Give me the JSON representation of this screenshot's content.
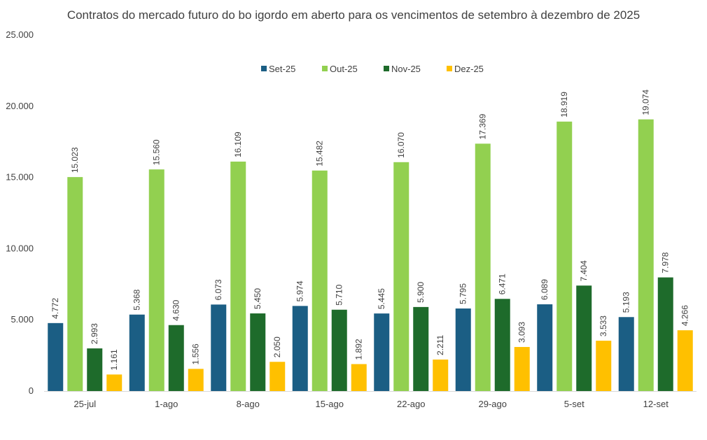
{
  "chart_data": {
    "type": "bar",
    "title": "Contratos do mercado futuro do bo igordo em aberto para os vencimentos de setembro à dezembro de 2025",
    "xlabel": "",
    "ylabel": "",
    "ylim": [
      0,
      25000
    ],
    "y_ticks": [
      "0",
      "5.000",
      "10.000",
      "15.000",
      "20.000",
      "25.000"
    ],
    "y_tick_values": [
      0,
      5000,
      10000,
      15000,
      20000,
      25000
    ],
    "grid": false,
    "legend_position": "top",
    "categories": [
      "25-jul",
      "1-ago",
      "8-ago",
      "15-ago",
      "22-ago",
      "29-ago",
      "5-set",
      "12-set"
    ],
    "series": [
      {
        "name": "Set-25",
        "color": "#1b5e84",
        "values": [
          4772,
          5368,
          6073,
          5974,
          5445,
          5795,
          6089,
          5193
        ],
        "labels": [
          "4.772",
          "5.368",
          "6.073",
          "5.974",
          "5.445",
          "5.795",
          "6.089",
          "5.193"
        ]
      },
      {
        "name": "Out-25",
        "color": "#92d050",
        "values": [
          15023,
          15560,
          16109,
          15482,
          16070,
          17369,
          18919,
          19074
        ],
        "labels": [
          "15.023",
          "15.560",
          "16.109",
          "15.482",
          "16.070",
          "17.369",
          "18.919",
          "19.074"
        ]
      },
      {
        "name": "Nov-25",
        "color": "#1e6b2b",
        "values": [
          2993,
          4630,
          5450,
          5710,
          5900,
          6471,
          7404,
          7978
        ],
        "labels": [
          "2.993",
          "4.630",
          "5.450",
          "5.710",
          "5.900",
          "6.471",
          "7.404",
          "7.978"
        ]
      },
      {
        "name": "Dez-25",
        "color": "#ffc000",
        "values": [
          1161,
          1556,
          2050,
          1892,
          2211,
          3093,
          3533,
          4266
        ],
        "labels": [
          "1.161",
          "1.556",
          "2.050",
          "1.892",
          "2.211",
          "3.093",
          "3.533",
          "4.266"
        ]
      }
    ]
  }
}
